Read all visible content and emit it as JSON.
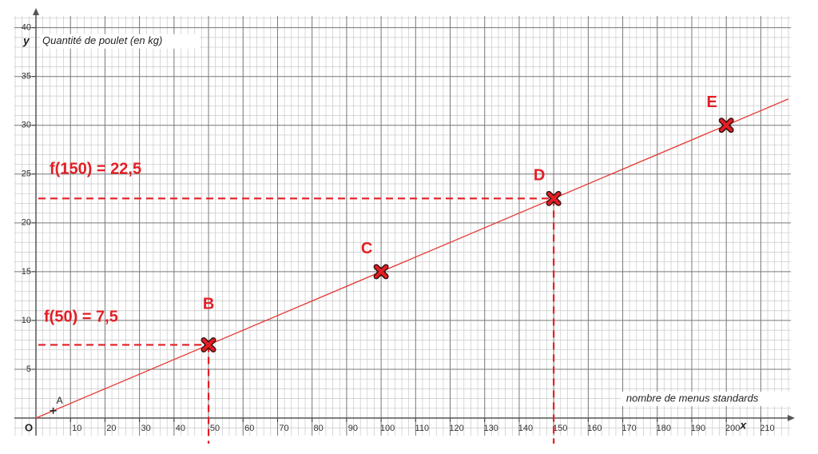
{
  "chart_data": {
    "type": "line",
    "y_label": "Quantité de poulet (en kg)",
    "x_label": "nombre de menus standards",
    "x_axis_name": "x",
    "y_axis_name": "y",
    "origin_label": "O",
    "xlim": [
      -6.25,
      218.7
    ],
    "ylim": [
      -1.8,
      41.2
    ],
    "xticks": [
      10,
      20,
      30,
      40,
      50,
      60,
      70,
      80,
      90,
      100,
      110,
      120,
      130,
      140,
      150,
      160,
      170,
      180,
      190,
      200,
      210
    ],
    "yticks": [
      5,
      10,
      15,
      20,
      25,
      30,
      35,
      40
    ],
    "grid": true,
    "minor_grid": {
      "x": 2,
      "y": 1
    },
    "color": "#e31e24",
    "series": [
      {
        "color": "#e53935",
        "x": [
          0,
          218
        ],
        "values": [
          0,
          32.7
        ]
      }
    ],
    "points": [
      {
        "label": "A",
        "x": 5,
        "y": 0.75,
        "marker": "plus"
      },
      {
        "label": "B",
        "x": 50,
        "y": 7.5,
        "marker": "cross"
      },
      {
        "label": "C",
        "x": 100,
        "y": 15,
        "marker": "cross"
      },
      {
        "label": "D",
        "x": 150,
        "y": 22.5,
        "marker": "cross"
      },
      {
        "label": "E",
        "x": 200,
        "y": 30,
        "marker": "cross"
      }
    ],
    "annotations": [
      {
        "text": "f(150) = 22,5",
        "point": "D"
      },
      {
        "text": "f(50) = 7,5",
        "point": "B"
      }
    ]
  }
}
